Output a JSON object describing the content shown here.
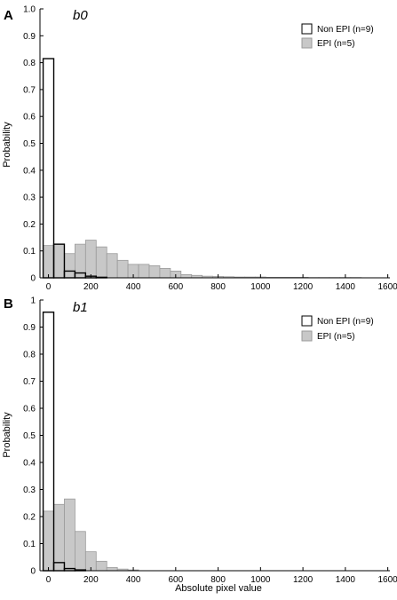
{
  "figure": {
    "xlabel": "Absolute pixel value"
  },
  "legend": {
    "non_epi_label": "Non EPI (n=9)",
    "epi_label": "EPI (n=5)"
  },
  "colors": {
    "epi_fill": "#c8c8c8",
    "epi_stroke": "#9a9a9a",
    "non_epi_stroke": "#000000",
    "axis": "#000000"
  },
  "chart_data": [
    {
      "type": "bar",
      "panel_letter": "A",
      "title": "b0",
      "ylabel": "Probability",
      "xlim": [
        -40,
        1610
      ],
      "ylim": [
        0,
        1
      ],
      "bin_width": 50,
      "x_ticks": [
        0,
        200,
        400,
        600,
        800,
        1000,
        1200,
        1400,
        1600
      ],
      "y_ticks": [
        0,
        0.1,
        0.2,
        0.3,
        0.4,
        0.5,
        0.6,
        0.7,
        0.8,
        0.9,
        1.0
      ],
      "y_tick_labels": [
        "0",
        "0.1",
        "0.2",
        "0.3",
        "0.4",
        "0.5",
        "0.6",
        "0.7",
        "0.8",
        "0.9",
        "1.0"
      ],
      "legend_position": "top-right",
      "series": [
        {
          "name": "EPI (n=5)",
          "style": "filled",
          "x": [
            0,
            50,
            100,
            150,
            200,
            250,
            300,
            350,
            400,
            450,
            500,
            550,
            600,
            650,
            700,
            750,
            800,
            850,
            900,
            950,
            1000,
            1050,
            1100,
            1150,
            1200,
            1250,
            1300,
            1350,
            1400,
            1450
          ],
          "values": [
            0.12,
            0.125,
            0.09,
            0.125,
            0.14,
            0.115,
            0.09,
            0.065,
            0.05,
            0.05,
            0.045,
            0.035,
            0.025,
            0.012,
            0.009,
            0.006,
            0.005,
            0.004,
            0.003,
            0.003,
            0.003,
            0.002,
            0.002,
            0.002,
            0.002,
            0.001,
            0.001,
            0.001,
            0.001,
            0.001
          ]
        },
        {
          "name": "Non EPI (n=9)",
          "style": "outline",
          "x": [
            0,
            50,
            100,
            150,
            200,
            250
          ],
          "values": [
            0.815,
            0.125,
            0.025,
            0.018,
            0.006,
            0.002
          ]
        }
      ]
    },
    {
      "type": "bar",
      "panel_letter": "B",
      "title": "b1",
      "ylabel": "Probability",
      "xlabel": "Absolute pixel value",
      "xlim": [
        -40,
        1610
      ],
      "ylim": [
        0,
        1
      ],
      "bin_width": 50,
      "x_ticks": [
        0,
        200,
        400,
        600,
        800,
        1000,
        1200,
        1400,
        1600
      ],
      "y_ticks": [
        0,
        0.1,
        0.2,
        0.3,
        0.4,
        0.5,
        0.6,
        0.7,
        0.8,
        0.9,
        1.0
      ],
      "y_tick_labels": [
        "0",
        "0.1",
        "0.2",
        "0.3",
        "0.4",
        "0.5",
        "0.6",
        "0.7",
        "0.8",
        "0.9",
        "1"
      ],
      "legend_position": "top-right",
      "series": [
        {
          "name": "EPI (n=5)",
          "style": "filled",
          "x": [
            0,
            50,
            100,
            150,
            200,
            250,
            300,
            350,
            400
          ],
          "values": [
            0.22,
            0.245,
            0.265,
            0.145,
            0.07,
            0.035,
            0.012,
            0.006,
            0.003
          ]
        },
        {
          "name": "Non EPI (n=9)",
          "style": "outline",
          "x": [
            0,
            50,
            100,
            150
          ],
          "values": [
            0.955,
            0.03,
            0.008,
            0.003
          ]
        }
      ]
    }
  ]
}
